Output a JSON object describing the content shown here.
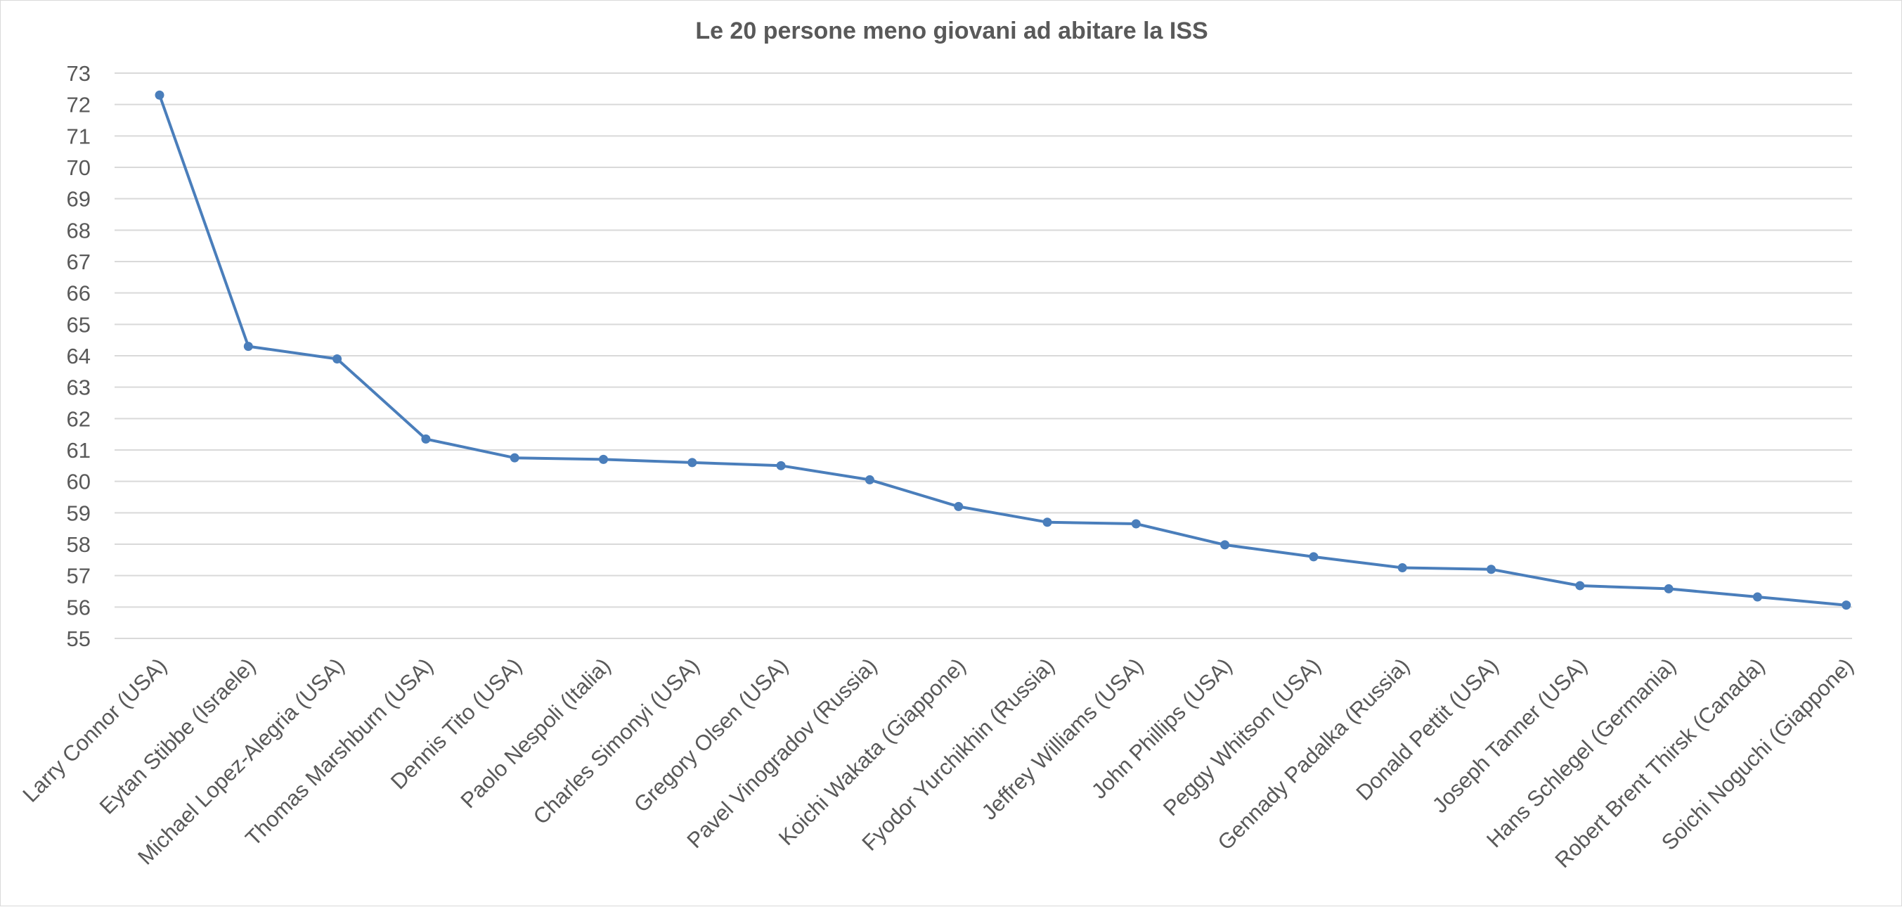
{
  "chart_data": {
    "type": "line",
    "title": "Le 20 persone meno giovani ad abitare la ISS",
    "xlabel": "",
    "ylabel": "",
    "ylim": [
      55,
      73
    ],
    "yticks": [
      "55",
      "56",
      "57",
      "58",
      "59",
      "60",
      "61",
      "62",
      "63",
      "64",
      "65",
      "66",
      "67",
      "68",
      "69",
      "70",
      "71",
      "72",
      "73"
    ],
    "grid": true,
    "legend": "none",
    "color": "#4a7ebb",
    "categories": [
      "Larry Connor (USA)",
      "Eytan Stibbe (Israele)",
      "Michael Lopez-Alegria (USA)",
      "Thomas Marshburn (USA)",
      "Dennis Tito (USA)",
      "Paolo Nespoli (Italia)",
      "Charles Simonyi (USA)",
      "Gregory Olsen (USA)",
      "Pavel Vinogradov (Russia)",
      "Koichi Wakata (Giappone)",
      "Fyodor Yurchikhin (Russia)",
      "Jeffrey Williams (USA)",
      "John Phillips (USA)",
      "Peggy Whitson (USA)",
      "Gennady Padalka (Russia)",
      "Donald Pettit (USA)",
      "Joseph Tanner (USA)",
      "Hans Schlegel (Germania)",
      "Robert Brent Thirsk (Canada)",
      "Soichi Noguchi (Giappone)"
    ],
    "values": [
      72.3,
      64.3,
      63.9,
      61.35,
      60.75,
      60.7,
      60.6,
      60.5,
      60.05,
      59.2,
      58.7,
      58.65,
      57.98,
      57.6,
      57.25,
      57.2,
      56.68,
      56.58,
      56.32,
      56.06
    ]
  }
}
